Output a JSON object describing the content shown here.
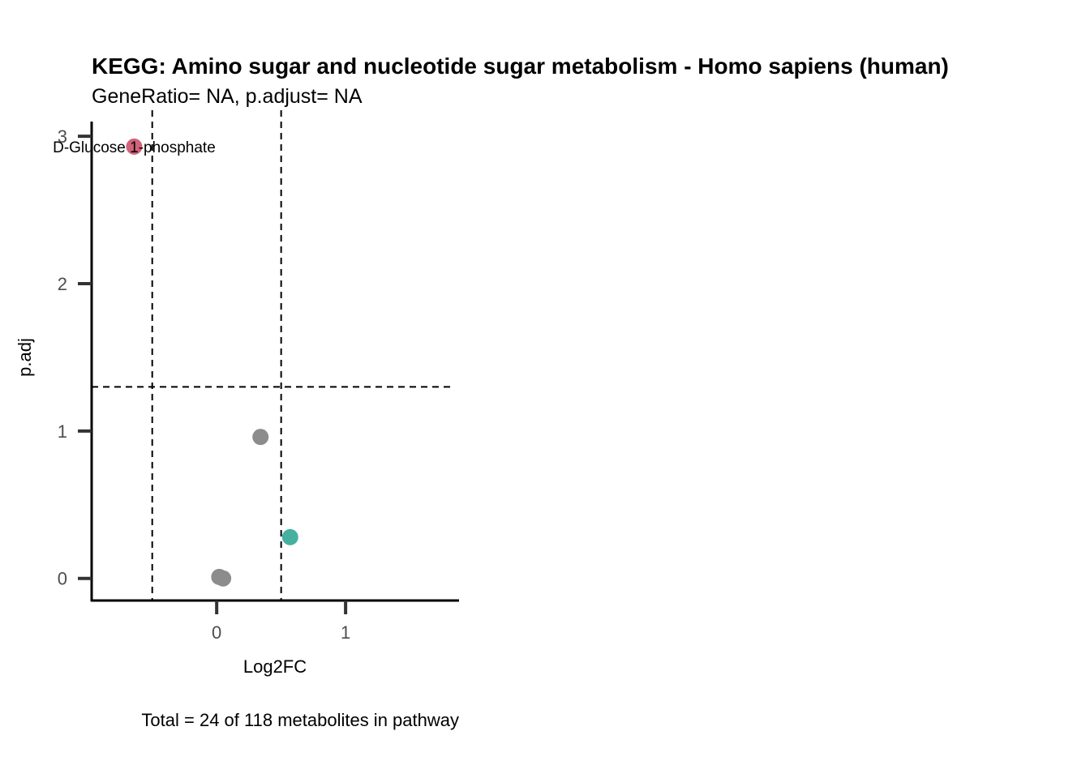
{
  "chart_data": {
    "type": "scatter",
    "title": "KEGG: Amino sugar and nucleotide sugar metabolism - Homo sapiens (human)",
    "subtitle": "GeneRatio= NA, p.adjust= NA",
    "xlabel": "Log2FC",
    "ylabel": "p.adj",
    "caption": "Total = 24 of 118 metabolites in pathway",
    "xlim": [
      -0.97,
      1.88
    ],
    "ylim": [
      -0.15,
      3.1
    ],
    "x_ticks": [
      {
        "value": 0,
        "label": "0"
      },
      {
        "value": 1,
        "label": "1"
      }
    ],
    "y_ticks": [
      {
        "value": 0,
        "label": "0"
      },
      {
        "value": 1,
        "label": "1"
      },
      {
        "value": 2,
        "label": "2"
      },
      {
        "value": 3,
        "label": "3"
      }
    ],
    "vlines": [
      -0.5,
      0.5
    ],
    "hlines": [
      1.3
    ],
    "grid": false,
    "colors": {
      "down": "#d1627a",
      "up": "#45b0a0",
      "ns": "#8c8c8c"
    },
    "points": [
      {
        "x": -0.64,
        "y": 2.93,
        "group": "down",
        "label": "D-Glucose 1-phosphate"
      },
      {
        "x": 0.34,
        "y": 0.96,
        "group": "ns",
        "label": ""
      },
      {
        "x": 0.57,
        "y": 0.28,
        "group": "up",
        "label": ""
      },
      {
        "x": 0.02,
        "y": 0.01,
        "group": "ns",
        "label": ""
      },
      {
        "x": 0.05,
        "y": 0.0,
        "group": "ns",
        "label": ""
      }
    ]
  }
}
